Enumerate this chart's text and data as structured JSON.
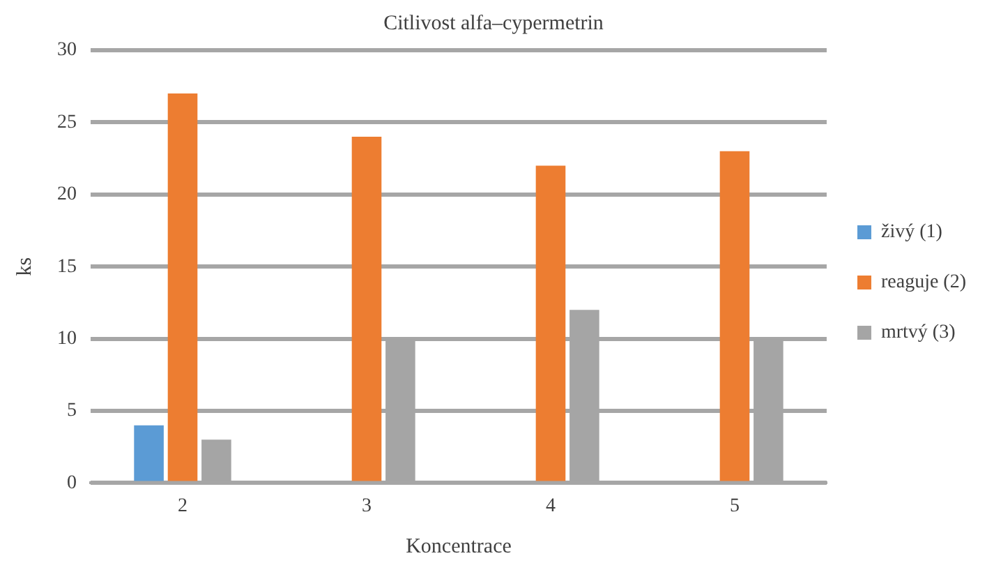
{
  "chart_data": {
    "type": "bar",
    "title": "Citlivost alfa–cypermetrin",
    "xlabel": "Koncentrace",
    "ylabel": "ks",
    "categories": [
      "2",
      "3",
      "4",
      "5"
    ],
    "series": [
      {
        "name": "živý (1)",
        "color": "#5b9bd5",
        "values": [
          4,
          0,
          0,
          0
        ]
      },
      {
        "name": "reaguje (2)",
        "color": "#ed7d31",
        "values": [
          27,
          24,
          22,
          23
        ]
      },
      {
        "name": "mrtvý (3)",
        "color": "#a5a5a5",
        "values": [
          3,
          10,
          12,
          10
        ]
      }
    ],
    "ylim": [
      0,
      30
    ],
    "yticks": [
      0,
      5,
      10,
      15,
      20,
      25,
      30
    ],
    "grid": "y",
    "legend": "right"
  }
}
